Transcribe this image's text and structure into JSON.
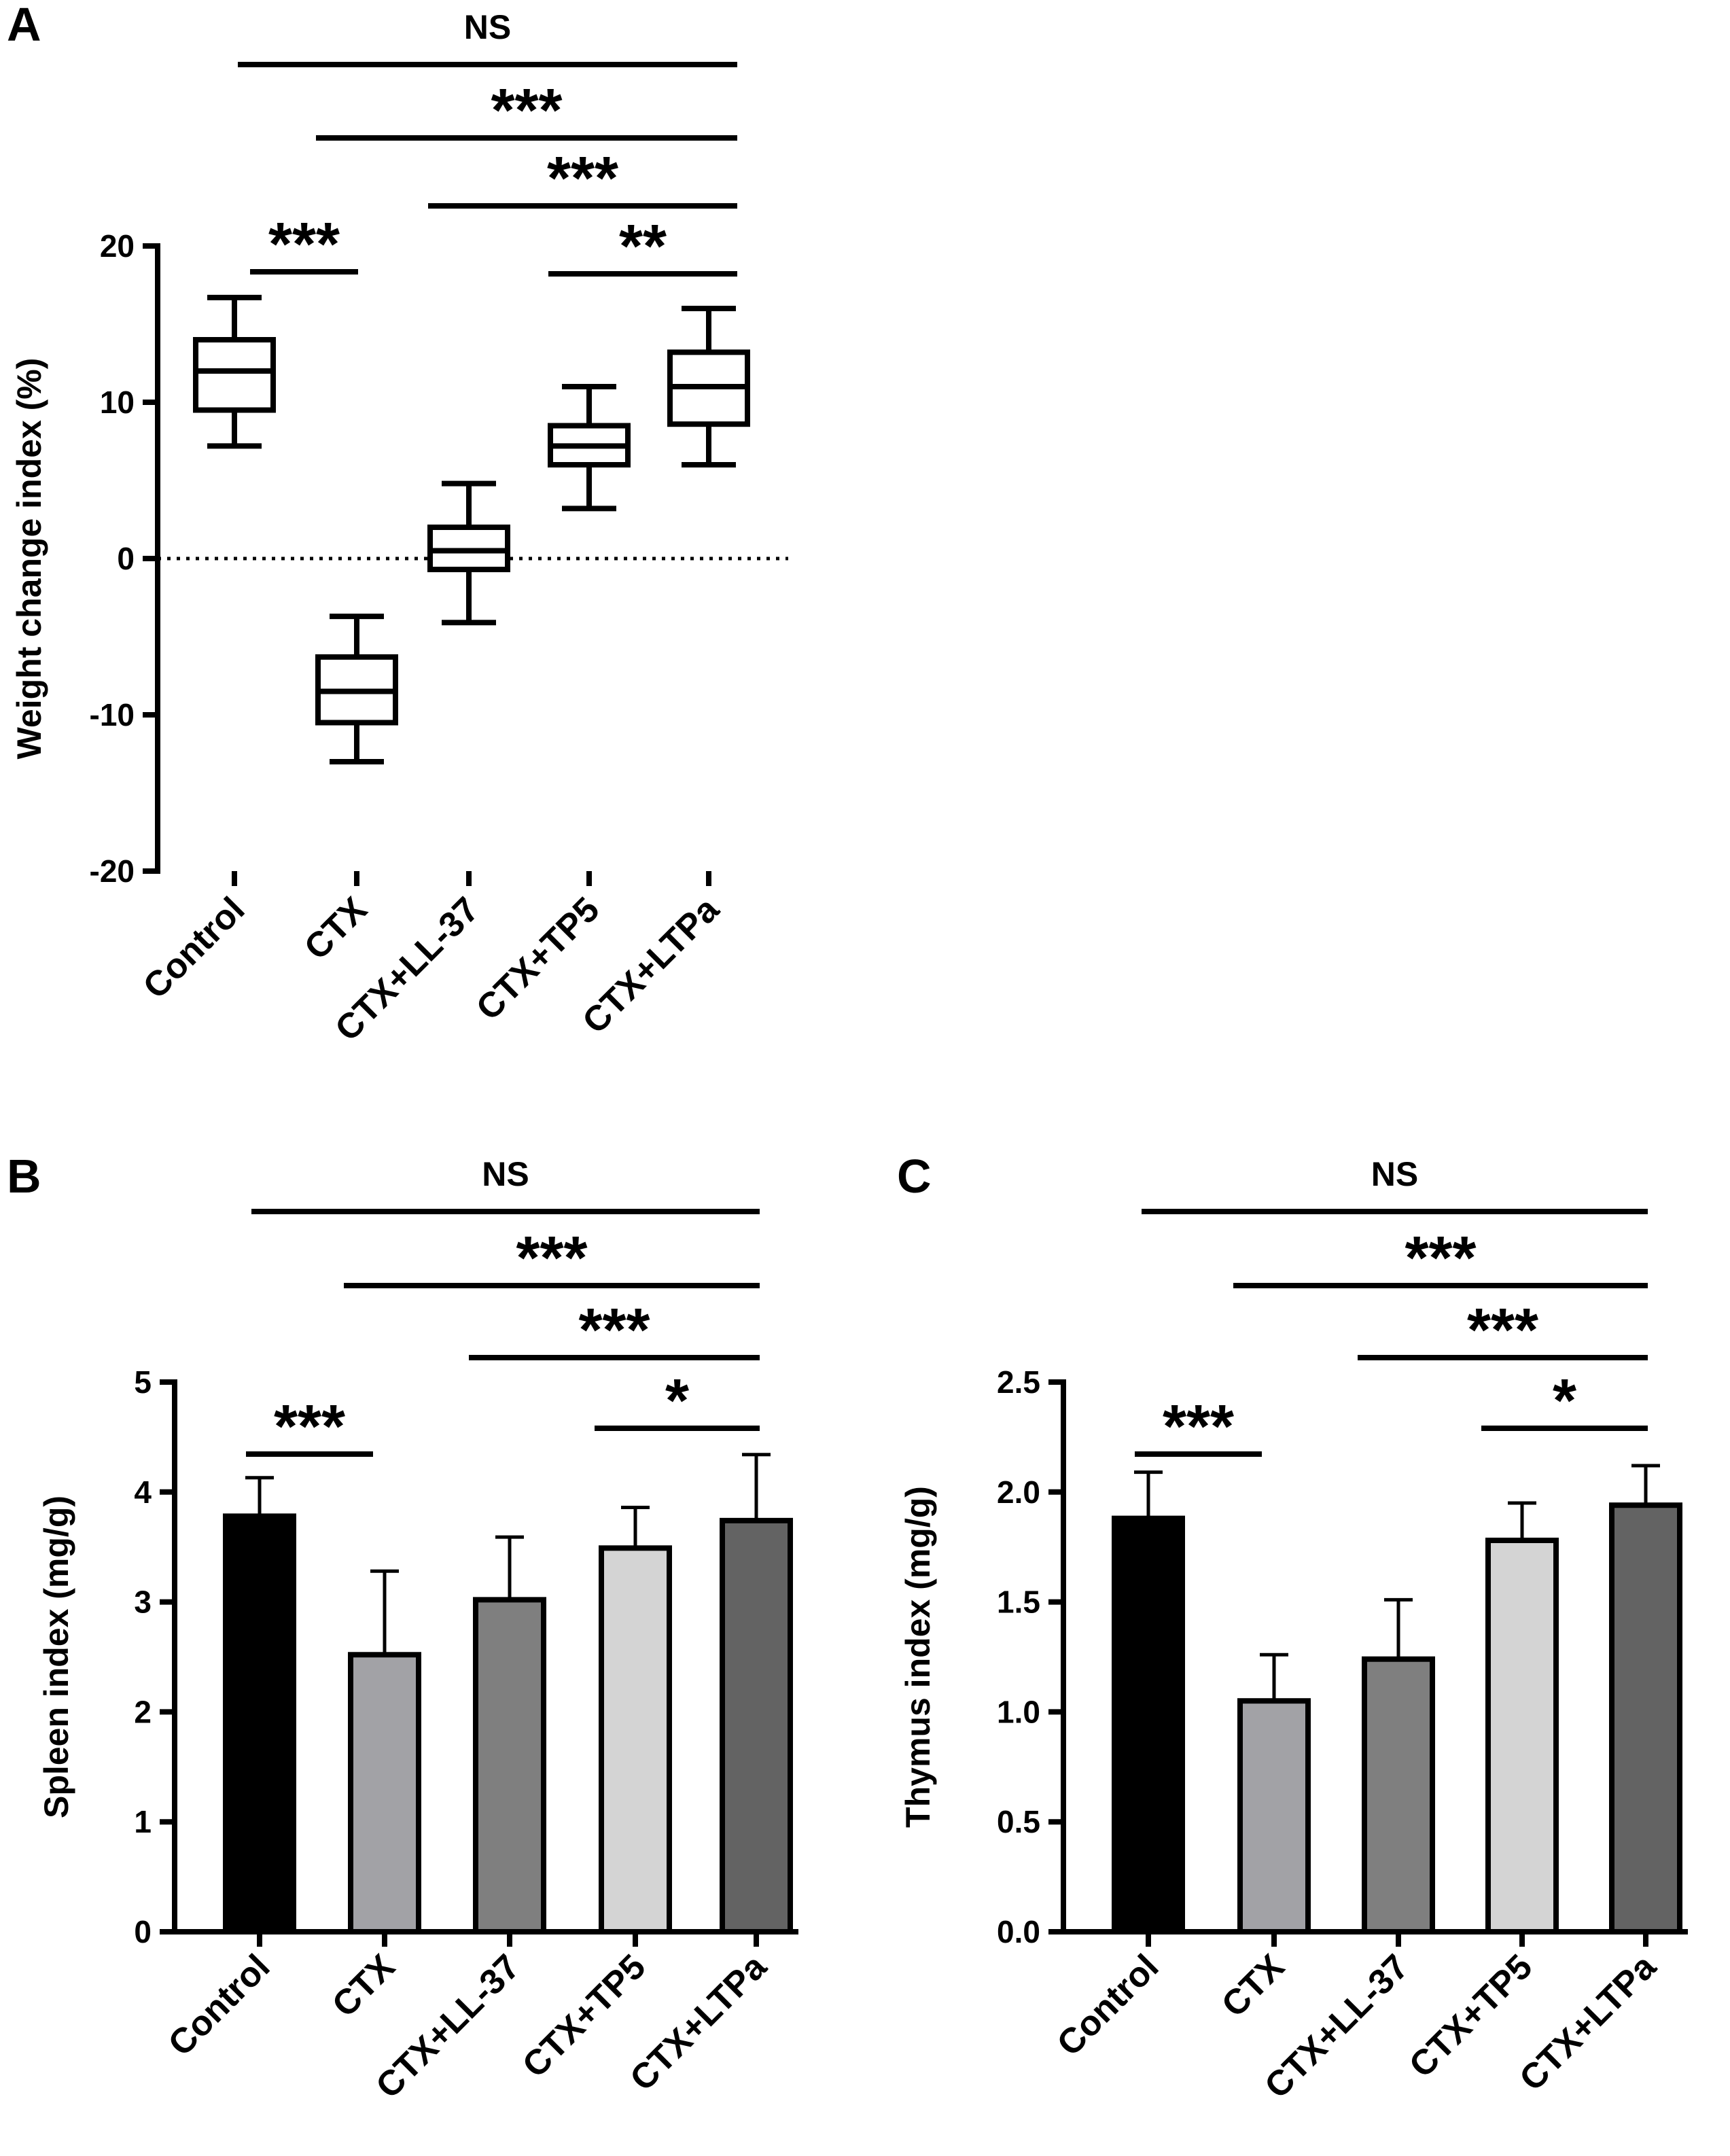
{
  "chart_data": [
    {
      "panel": "A",
      "type": "box",
      "ylabel": "Weight change index (%)",
      "ylim": [
        -20,
        20
      ],
      "yticks": [
        20,
        10,
        0,
        -10,
        -20
      ],
      "reference_line": 0,
      "categories": [
        "Control",
        "CTX",
        "CTX+LL-37",
        "CTX+TP5",
        "CTX+LTPa"
      ],
      "boxes": [
        {
          "min": 7.2,
          "q1": 9.5,
          "median": 12.0,
          "q3": 14.0,
          "max": 16.7
        },
        {
          "min": -13.0,
          "q1": -10.5,
          "median": -8.5,
          "q3": -6.3,
          "max": -3.7
        },
        {
          "min": -4.1,
          "q1": -0.7,
          "median": 0.5,
          "q3": 2.0,
          "max": 4.8
        },
        {
          "min": 3.2,
          "q1": 6.0,
          "median": 7.2,
          "q3": 8.5,
          "max": 11.0
        },
        {
          "min": 6.0,
          "q1": 8.6,
          "median": 11.0,
          "q3": 13.2,
          "max": 16.0
        }
      ],
      "significance": [
        {
          "from": 0,
          "to": 4,
          "label": "NS"
        },
        {
          "from": 1,
          "to": 4,
          "label": "***"
        },
        {
          "from": 2,
          "to": 4,
          "label": "***"
        },
        {
          "from": 3,
          "to": 4,
          "label": "**"
        },
        {
          "from": 0,
          "to": 1,
          "label": "***"
        }
      ]
    },
    {
      "panel": "B",
      "type": "bar",
      "ylabel": "Spleen index (mg/g)",
      "ylim": [
        0,
        5
      ],
      "yticks": [
        "0",
        "1",
        "2",
        "3",
        "4",
        "5"
      ],
      "categories": [
        "Control",
        "CTX",
        "CTX+LL-37",
        "CTX+TP5",
        "CTX+LTPa"
      ],
      "values": [
        3.78,
        2.52,
        3.02,
        3.49,
        3.74
      ],
      "errors": [
        0.35,
        0.76,
        0.57,
        0.37,
        0.6
      ],
      "colors": [
        "#000000",
        "#a2a2a6",
        "#7f7f7f",
        "#d4d4d4",
        "#636363"
      ],
      "significance": [
        {
          "from": 0,
          "to": 4,
          "label": "NS"
        },
        {
          "from": 1,
          "to": 4,
          "label": "***"
        },
        {
          "from": 2,
          "to": 4,
          "label": "***"
        },
        {
          "from": 3,
          "to": 4,
          "label": "*"
        },
        {
          "from": 0,
          "to": 1,
          "label": "***"
        }
      ]
    },
    {
      "panel": "C",
      "type": "bar",
      "ylabel": "Thymus index (mg/g)",
      "ylim": [
        0,
        2.5
      ],
      "yticks": [
        "0.0",
        "0.5",
        "1.0",
        "1.5",
        "2.0",
        "2.5"
      ],
      "categories": [
        "Control",
        "CTX",
        "CTX+LL-37",
        "CTX+TP5",
        "CTX+LTPa"
      ],
      "values": [
        1.88,
        1.05,
        1.24,
        1.78,
        1.94
      ],
      "errors": [
        0.21,
        0.21,
        0.27,
        0.17,
        0.18
      ],
      "colors": [
        "#000000",
        "#a2a2a6",
        "#7f7f7f",
        "#d4d4d4",
        "#636363"
      ],
      "significance": [
        {
          "from": 0,
          "to": 4,
          "label": "NS"
        },
        {
          "from": 1,
          "to": 4,
          "label": "***"
        },
        {
          "from": 2,
          "to": 4,
          "label": "***"
        },
        {
          "from": 3,
          "to": 4,
          "label": "*"
        },
        {
          "from": 0,
          "to": 1,
          "label": "***"
        }
      ]
    }
  ]
}
